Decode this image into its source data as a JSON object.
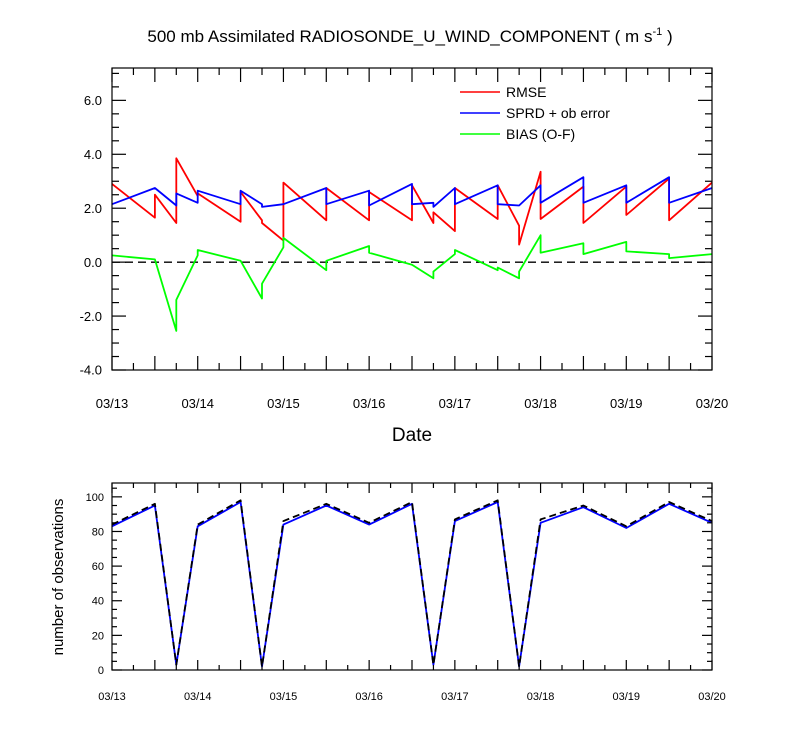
{
  "chart_data": [
    {
      "type": "line",
      "title": "500 mb Assimilated RADIOSONDE_U_WIND_COMPONENT ( m s",
      "title_superscript": "-1",
      "title_suffix": " )",
      "xlabel": "Date",
      "ylabel": "",
      "x_tick_labels": [
        "03/13",
        "03/14",
        "03/15",
        "03/16",
        "03/17",
        "03/18",
        "03/19",
        "03/20"
      ],
      "y_tick_labels": [
        "6.0",
        "4.0",
        "2.0",
        "0.0",
        "-2.0",
        "-4.0"
      ],
      "y_tick_values": [
        6,
        4,
        2,
        0,
        -2,
        -4
      ],
      "xlim": [
        0,
        7
      ],
      "ylim": [
        -4,
        7.2
      ],
      "reference_line": {
        "y": 0,
        "style": "dashed"
      },
      "legend_position": "top-right",
      "series": [
        {
          "name": "RMSE",
          "color": "#ff0000",
          "x": [
            0,
            0.5,
            0.5,
            0.75,
            0.75,
            1,
            1,
            1.5,
            1.5,
            1.75,
            1.75,
            2,
            2,
            2.5,
            2.5,
            3,
            3,
            3.5,
            3.5,
            3.75,
            3.75,
            4,
            4,
            4.5,
            4.5,
            4.75,
            4.75,
            5,
            5,
            5.5,
            5.5,
            6,
            6,
            6.5,
            6.5,
            7
          ],
          "y": [
            2.9,
            1.65,
            2.5,
            1.45,
            3.85,
            2.45,
            2.55,
            1.5,
            2.6,
            1.55,
            1.45,
            0.8,
            2.95,
            1.55,
            2.75,
            1.55,
            2.6,
            1.55,
            2.85,
            1.45,
            1.85,
            1.15,
            2.75,
            1.6,
            2.85,
            1.35,
            0.65,
            3.35,
            1.6,
            2.8,
            1.45,
            2.8,
            1.75,
            3.1,
            1.55,
            2.95
          ]
        },
        {
          "name": "SPRD + ob error",
          "color": "#0000ff",
          "x": [
            0,
            0.5,
            0.75,
            0.75,
            1,
            1,
            1.5,
            1.5,
            1.75,
            1.75,
            2,
            2,
            2.5,
            2.5,
            3,
            3,
            3.5,
            3.5,
            3.75,
            3.75,
            4,
            4,
            4.5,
            4.5,
            4.75,
            4.75,
            5,
            5,
            5.5,
            5.5,
            6,
            6,
            6.5,
            6.5,
            7
          ],
          "y": [
            2.15,
            2.75,
            2.1,
            2.55,
            2.2,
            2.65,
            2.15,
            2.65,
            2.15,
            2.05,
            2.15,
            2.15,
            2.75,
            2.15,
            2.65,
            2.1,
            2.9,
            2.15,
            2.2,
            2.05,
            2.75,
            2.15,
            2.85,
            2.15,
            2.1,
            2.1,
            2.85,
            2.2,
            3.15,
            2.2,
            2.85,
            2.2,
            3.15,
            2.2,
            2.75
          ]
        },
        {
          "name": "BIAS (O-F)",
          "color": "#00ff00",
          "x": [
            0,
            0.5,
            0.75,
            0.75,
            1,
            1,
            1.5,
            1.75,
            1.75,
            2,
            2,
            2.5,
            2.5,
            3,
            3,
            3.5,
            3.75,
            3.75,
            4,
            4,
            4.5,
            4.5,
            4.75,
            4.75,
            5,
            5,
            5.5,
            5.5,
            6,
            6,
            6.5,
            6.5,
            7
          ],
          "y": [
            0.25,
            0.1,
            -2.55,
            -1.4,
            0.25,
            0.45,
            0.05,
            -1.35,
            -0.8,
            0.55,
            0.9,
            -0.3,
            0.05,
            0.6,
            0.35,
            -0.1,
            -0.6,
            -0.35,
            0.3,
            0.45,
            -0.3,
            -0.2,
            -0.6,
            -0.35,
            1.0,
            0.35,
            0.7,
            0.3,
            0.75,
            0.4,
            0.3,
            0.15,
            0.3
          ]
        }
      ]
    },
    {
      "type": "line",
      "title": "",
      "xlabel": "",
      "ylabel": "number of observations",
      "x_tick_labels": [
        "03/13",
        "03/14",
        "03/15",
        "03/16",
        "03/17",
        "03/18",
        "03/19",
        "03/20"
      ],
      "y_tick_labels": [
        "100",
        "80",
        "60",
        "40",
        "20",
        "0"
      ],
      "y_tick_values": [
        100,
        80,
        60,
        40,
        20,
        0
      ],
      "xlim": [
        0,
        7
      ],
      "ylim": [
        0,
        108
      ],
      "series": [
        {
          "color": "#0000ff",
          "style": "solid",
          "x": [
            0,
            0.5,
            0.75,
            1,
            1.5,
            1.75,
            2,
            2.5,
            3,
            3.5,
            3.75,
            4,
            4.5,
            4.75,
            5,
            5.5,
            6,
            6.5,
            7
          ],
          "y": [
            83,
            95,
            3,
            83,
            97,
            2,
            84,
            95,
            84,
            96,
            3,
            86,
            97,
            2,
            85,
            94,
            82,
            96,
            85
          ]
        },
        {
          "color": "#000000",
          "style": "dashed",
          "x": [
            0,
            0.5,
            0.75,
            1,
            1.5,
            1.75,
            2,
            2.5,
            3,
            3.5,
            3.75,
            4,
            4.5,
            4.75,
            5,
            5.5,
            6,
            6.5,
            7
          ],
          "y": [
            84,
            96,
            3,
            84,
            98,
            2,
            86,
            96,
            85,
            97,
            3,
            87,
            98,
            2,
            87,
            95,
            83,
            97,
            86
          ]
        }
      ]
    }
  ]
}
